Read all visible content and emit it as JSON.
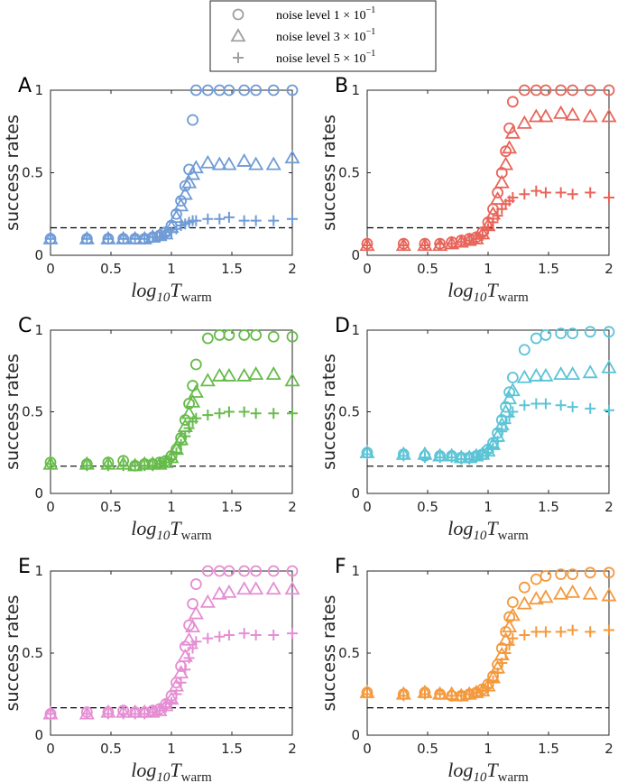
{
  "legend": {
    "entries": [
      {
        "marker": "circle",
        "prefix": "noise level ",
        "mantissa": "1",
        "exponent": "−1"
      },
      {
        "marker": "triangle",
        "prefix": "noise level ",
        "mantissa": "3",
        "exponent": "−1"
      },
      {
        "marker": "plus",
        "prefix": "noise level ",
        "mantissa": "5",
        "exponent": "−1"
      }
    ],
    "legend_color": "#a0a0a0"
  },
  "chart_data": [
    {
      "type": "scatter",
      "panel": "A",
      "color": "#6f9bd6",
      "ylabel": "success rates",
      "xlabel": {
        "base": "log",
        "sub": "10",
        "var": "T",
        "subvar": "warm"
      },
      "xticks": [
        "0",
        "0.5",
        "1",
        "1.5",
        "2"
      ],
      "yticks": [
        "0",
        "0.5",
        "1"
      ],
      "xlim": [
        0,
        2
      ],
      "ylim": [
        0,
        1
      ],
      "baseline": 0.1667,
      "x": [
        0,
        0.301,
        0.477,
        0.602,
        0.699,
        0.778,
        0.845,
        0.903,
        0.954,
        1.0,
        1.041,
        1.079,
        1.114,
        1.146,
        1.176,
        1.204,
        1.301,
        1.398,
        1.477,
        1.602,
        1.699,
        1.845,
        2.0
      ],
      "series": [
        {
          "name": "noise level 1e-1",
          "marker": "circle",
          "values": [
            0.1,
            0.1,
            0.1,
            0.1,
            0.1,
            0.1,
            0.11,
            0.12,
            0.14,
            0.18,
            0.25,
            0.33,
            0.42,
            0.52,
            0.82,
            1.0,
            1.0,
            1.0,
            1.0,
            1.0,
            1.0,
            1.0,
            1.0
          ]
        },
        {
          "name": "noise level 3e-1",
          "marker": "triangle",
          "values": [
            0.1,
            0.1,
            0.1,
            0.1,
            0.1,
            0.1,
            0.11,
            0.12,
            0.13,
            0.17,
            0.23,
            0.3,
            0.37,
            0.44,
            0.49,
            0.53,
            0.56,
            0.55,
            0.55,
            0.57,
            0.55,
            0.55,
            0.59
          ]
        },
        {
          "name": "noise level 5e-1",
          "marker": "plus",
          "values": [
            0.1,
            0.1,
            0.1,
            0.1,
            0.1,
            0.1,
            0.11,
            0.11,
            0.12,
            0.14,
            0.16,
            0.18,
            0.19,
            0.2,
            0.21,
            0.21,
            0.22,
            0.22,
            0.23,
            0.21,
            0.21,
            0.21,
            0.22
          ]
        }
      ]
    },
    {
      "type": "scatter",
      "panel": "B",
      "color": "#e8655a",
      "ylabel": "success rates",
      "xlabel": {
        "base": "log",
        "sub": "10",
        "var": "T",
        "subvar": "warm"
      },
      "xticks": [
        "0",
        "0.5",
        "1",
        "1.5",
        "2"
      ],
      "yticks": [
        "0",
        "0.5",
        "1"
      ],
      "xlim": [
        0,
        2
      ],
      "ylim": [
        0,
        1
      ],
      "baseline": 0.1667,
      "x": [
        0,
        0.301,
        0.477,
        0.602,
        0.699,
        0.778,
        0.845,
        0.903,
        0.954,
        1.0,
        1.041,
        1.079,
        1.114,
        1.146,
        1.176,
        1.204,
        1.301,
        1.398,
        1.477,
        1.602,
        1.699,
        1.845,
        2.0
      ],
      "series": [
        {
          "name": "noise level 1e-1",
          "marker": "circle",
          "values": [
            0.07,
            0.07,
            0.07,
            0.07,
            0.08,
            0.09,
            0.1,
            0.11,
            0.14,
            0.2,
            0.28,
            0.38,
            0.5,
            0.63,
            0.77,
            0.93,
            1.0,
            1.0,
            1.0,
            1.0,
            1.0,
            1.0,
            1.0
          ]
        },
        {
          "name": "noise level 3e-1",
          "marker": "triangle",
          "values": [
            0.06,
            0.06,
            0.06,
            0.06,
            0.07,
            0.08,
            0.09,
            0.1,
            0.13,
            0.18,
            0.25,
            0.34,
            0.44,
            0.55,
            0.65,
            0.74,
            0.8,
            0.84,
            0.84,
            0.86,
            0.85,
            0.84,
            0.84
          ]
        },
        {
          "name": "noise level 5e-1",
          "marker": "plus",
          "values": [
            0.06,
            0.06,
            0.06,
            0.07,
            0.07,
            0.08,
            0.09,
            0.1,
            0.12,
            0.16,
            0.2,
            0.24,
            0.28,
            0.31,
            0.33,
            0.35,
            0.37,
            0.39,
            0.38,
            0.38,
            0.37,
            0.38,
            0.35
          ]
        }
      ]
    },
    {
      "type": "scatter",
      "panel": "C",
      "color": "#67bb4b",
      "ylabel": "success rates",
      "xlabel": {
        "base": "log",
        "sub": "10",
        "var": "T",
        "subvar": "warm"
      },
      "xticks": [
        "0",
        "0.5",
        "1",
        "1.5",
        "2"
      ],
      "yticks": [
        "0",
        "0.5",
        "1"
      ],
      "xlim": [
        0,
        2
      ],
      "ylim": [
        0,
        1
      ],
      "baseline": 0.1667,
      "x": [
        0,
        0.301,
        0.477,
        0.602,
        0.699,
        0.778,
        0.845,
        0.903,
        0.954,
        1.0,
        1.041,
        1.079,
        1.114,
        1.146,
        1.176,
        1.204,
        1.301,
        1.398,
        1.477,
        1.602,
        1.699,
        1.845,
        2.0
      ],
      "series": [
        {
          "name": "noise level 1e-1",
          "marker": "circle",
          "values": [
            0.19,
            0.18,
            0.19,
            0.2,
            0.17,
            0.18,
            0.18,
            0.19,
            0.2,
            0.23,
            0.27,
            0.34,
            0.45,
            0.55,
            0.66,
            0.79,
            0.95,
            0.97,
            0.97,
            0.97,
            0.97,
            0.96,
            0.96
          ]
        },
        {
          "name": "noise level 3e-1",
          "marker": "triangle",
          "values": [
            0.18,
            0.18,
            0.18,
            0.18,
            0.17,
            0.18,
            0.18,
            0.18,
            0.19,
            0.22,
            0.27,
            0.33,
            0.41,
            0.49,
            0.56,
            0.62,
            0.69,
            0.72,
            0.72,
            0.72,
            0.73,
            0.73,
            0.69
          ]
        },
        {
          "name": "noise level 5e-1",
          "marker": "plus",
          "values": [
            0.18,
            0.17,
            0.17,
            0.17,
            0.17,
            0.17,
            0.17,
            0.18,
            0.19,
            0.21,
            0.25,
            0.3,
            0.35,
            0.4,
            0.44,
            0.46,
            0.48,
            0.49,
            0.5,
            0.5,
            0.49,
            0.49,
            0.49
          ]
        }
      ]
    },
    {
      "type": "scatter",
      "panel": "D",
      "color": "#5bc4d6",
      "ylabel": "success rates",
      "xlabel": {
        "base": "log",
        "sub": "10",
        "var": "T",
        "subvar": "warm"
      },
      "xticks": [
        "0",
        "0.5",
        "1",
        "1.5",
        "2"
      ],
      "yticks": [
        "0",
        "0.5",
        "1"
      ],
      "xlim": [
        0,
        2
      ],
      "ylim": [
        0,
        1
      ],
      "baseline": 0.1667,
      "x": [
        0,
        0.301,
        0.477,
        0.602,
        0.699,
        0.778,
        0.845,
        0.903,
        0.954,
        1.0,
        1.041,
        1.079,
        1.114,
        1.146,
        1.176,
        1.204,
        1.301,
        1.398,
        1.477,
        1.602,
        1.699,
        1.845,
        2.0
      ],
      "series": [
        {
          "name": "noise level 1e-1",
          "marker": "circle",
          "values": [
            0.25,
            0.24,
            0.23,
            0.23,
            0.23,
            0.22,
            0.22,
            0.23,
            0.24,
            0.27,
            0.31,
            0.37,
            0.45,
            0.53,
            0.62,
            0.71,
            0.88,
            0.95,
            0.97,
            0.98,
            0.98,
            0.99,
            0.99
          ]
        },
        {
          "name": "noise level 3e-1",
          "marker": "triangle",
          "values": [
            0.25,
            0.24,
            0.24,
            0.23,
            0.23,
            0.22,
            0.22,
            0.23,
            0.24,
            0.26,
            0.3,
            0.35,
            0.42,
            0.5,
            0.58,
            0.63,
            0.71,
            0.72,
            0.72,
            0.73,
            0.73,
            0.74,
            0.77
          ]
        },
        {
          "name": "noise level 5e-1",
          "marker": "plus",
          "values": [
            0.24,
            0.23,
            0.22,
            0.22,
            0.22,
            0.21,
            0.21,
            0.22,
            0.23,
            0.25,
            0.28,
            0.32,
            0.38,
            0.43,
            0.47,
            0.5,
            0.54,
            0.55,
            0.55,
            0.54,
            0.53,
            0.52,
            0.51
          ]
        }
      ]
    },
    {
      "type": "scatter",
      "panel": "E",
      "color": "#e58ed3",
      "ylabel": "success rates",
      "xlabel": {
        "base": "log",
        "sub": "10",
        "var": "T",
        "subvar": "warm"
      },
      "xticks": [
        "0",
        "0.5",
        "1",
        "1.5",
        "2"
      ],
      "yticks": [
        "0",
        "0.5",
        "1"
      ],
      "xlim": [
        0,
        2
      ],
      "ylim": [
        0,
        1
      ],
      "baseline": 0.1667,
      "x": [
        0,
        0.301,
        0.477,
        0.602,
        0.699,
        0.778,
        0.845,
        0.903,
        0.954,
        1.0,
        1.041,
        1.079,
        1.114,
        1.146,
        1.176,
        1.204,
        1.301,
        1.398,
        1.477,
        1.602,
        1.699,
        1.845,
        2.0
      ],
      "series": [
        {
          "name": "noise level 1e-1",
          "marker": "circle",
          "values": [
            0.13,
            0.14,
            0.14,
            0.15,
            0.14,
            0.14,
            0.15,
            0.16,
            0.19,
            0.24,
            0.32,
            0.42,
            0.54,
            0.67,
            0.8,
            0.92,
            1.0,
            1.0,
            1.0,
            1.0,
            1.0,
            1.0,
            1.0
          ]
        },
        {
          "name": "noise level 3e-1",
          "marker": "triangle",
          "values": [
            0.13,
            0.13,
            0.14,
            0.14,
            0.14,
            0.14,
            0.14,
            0.15,
            0.18,
            0.22,
            0.3,
            0.38,
            0.48,
            0.58,
            0.66,
            0.74,
            0.81,
            0.86,
            0.87,
            0.89,
            0.89,
            0.89,
            0.89
          ]
        },
        {
          "name": "noise level 5e-1",
          "marker": "plus",
          "values": [
            0.13,
            0.13,
            0.13,
            0.13,
            0.13,
            0.13,
            0.14,
            0.15,
            0.17,
            0.2,
            0.25,
            0.32,
            0.4,
            0.47,
            0.53,
            0.57,
            0.59,
            0.6,
            0.61,
            0.62,
            0.61,
            0.61,
            0.62
          ]
        }
      ]
    },
    {
      "type": "scatter",
      "panel": "F",
      "color": "#f4993d",
      "ylabel": "success rates",
      "xlabel": {
        "base": "log",
        "sub": "10",
        "var": "T",
        "subvar": "warm"
      },
      "xticks": [
        "0",
        "0.5",
        "1",
        "1.5",
        "2"
      ],
      "yticks": [
        "0",
        "0.5",
        "1"
      ],
      "xlim": [
        0,
        2
      ],
      "ylim": [
        0,
        1
      ],
      "baseline": 0.1667,
      "x": [
        0,
        0.301,
        0.477,
        0.602,
        0.699,
        0.778,
        0.845,
        0.903,
        0.954,
        1.0,
        1.041,
        1.079,
        1.114,
        1.146,
        1.176,
        1.204,
        1.301,
        1.398,
        1.477,
        1.602,
        1.699,
        1.845,
        2.0
      ],
      "series": [
        {
          "name": "noise level 1e-1",
          "marker": "circle",
          "values": [
            0.26,
            0.25,
            0.26,
            0.25,
            0.24,
            0.24,
            0.25,
            0.26,
            0.28,
            0.31,
            0.36,
            0.43,
            0.53,
            0.63,
            0.72,
            0.81,
            0.9,
            0.95,
            0.97,
            0.98,
            0.98,
            0.99,
            0.99
          ]
        },
        {
          "name": "noise level 3e-1",
          "marker": "triangle",
          "values": [
            0.26,
            0.25,
            0.26,
            0.25,
            0.25,
            0.24,
            0.25,
            0.26,
            0.27,
            0.3,
            0.35,
            0.41,
            0.49,
            0.58,
            0.66,
            0.73,
            0.8,
            0.83,
            0.84,
            0.86,
            0.87,
            0.86,
            0.85
          ]
        },
        {
          "name": "noise level 5e-1",
          "marker": "plus",
          "values": [
            0.25,
            0.24,
            0.25,
            0.25,
            0.24,
            0.24,
            0.25,
            0.26,
            0.27,
            0.29,
            0.33,
            0.38,
            0.44,
            0.5,
            0.55,
            0.59,
            0.61,
            0.63,
            0.63,
            0.63,
            0.64,
            0.63,
            0.64
          ]
        }
      ]
    }
  ]
}
